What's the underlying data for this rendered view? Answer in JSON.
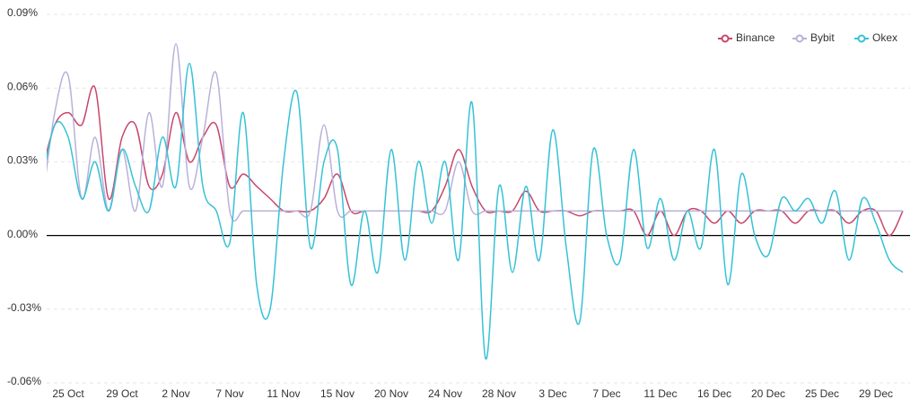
{
  "chart_data": {
    "type": "line",
    "categories": [
      null,
      null,
      "25 Oct",
      null,
      null,
      null,
      "29 Oct",
      null,
      null,
      null,
      "2 Nov",
      null,
      null,
      null,
      "7 Nov",
      null,
      null,
      null,
      "11 Nov",
      null,
      null,
      null,
      "15 Nov",
      null,
      null,
      null,
      "20 Nov",
      null,
      null,
      null,
      "24 Nov",
      null,
      null,
      null,
      "28 Nov",
      null,
      null,
      null,
      "3 Dec",
      null,
      null,
      null,
      "7 Dec",
      null,
      null,
      null,
      "11 Dec",
      null,
      null,
      null,
      "16 Dec",
      null,
      null,
      null,
      "20 Dec",
      null,
      null,
      null,
      "25 Dec",
      null,
      null,
      null,
      "29 Dec",
      null,
      null
    ],
    "series": [
      {
        "name": "Binance",
        "color": "#c8476a",
        "values": [
          0.025,
          0.045,
          0.05,
          0.045,
          0.06,
          0.015,
          0.04,
          0.045,
          0.02,
          0.025,
          0.05,
          0.03,
          0.04,
          0.045,
          0.02,
          0.025,
          0.02,
          0.015,
          0.01,
          0.01,
          0.01,
          0.015,
          0.025,
          0.01,
          0.01,
          0.01,
          0.01,
          0.01,
          0.01,
          0.01,
          0.02,
          0.035,
          0.02,
          0.01,
          0.01,
          0.01,
          0.018,
          0.01,
          0.01,
          0.01,
          0.008,
          0.01,
          0.01,
          0.01,
          0.01,
          0.0,
          0.01,
          0.0,
          0.01,
          0.01,
          0.005,
          0.01,
          0.005,
          0.01,
          0.01,
          0.01,
          0.005,
          0.01,
          0.01,
          0.01,
          0.005,
          0.01,
          0.01,
          0.0,
          0.01
        ]
      },
      {
        "name": "Bybit",
        "color": "#b9b1da",
        "values": [
          0.01,
          0.05,
          0.065,
          0.015,
          0.04,
          0.01,
          0.035,
          0.01,
          0.05,
          0.02,
          0.078,
          0.02,
          0.04,
          0.066,
          0.01,
          0.01,
          0.01,
          0.01,
          0.01,
          0.01,
          0.01,
          0.045,
          0.01,
          0.01,
          0.01,
          0.01,
          0.01,
          0.01,
          0.01,
          0.01,
          0.01,
          0.03,
          0.01,
          0.01,
          0.01,
          0.01,
          0.01,
          0.01,
          0.01,
          0.01,
          0.01,
          0.01,
          0.01,
          0.01,
          0.01,
          0.01,
          0.01,
          0.01,
          0.01,
          0.01,
          0.01,
          0.01,
          0.01,
          0.01,
          0.01,
          0.01,
          0.01,
          0.01,
          0.01,
          0.01,
          0.01,
          0.01,
          0.01,
          0.01,
          0.01
        ]
      },
      {
        "name": "Okex",
        "color": "#36c2d6",
        "values": [
          0.02,
          0.045,
          0.04,
          0.015,
          0.03,
          0.01,
          0.035,
          0.02,
          0.01,
          0.04,
          0.02,
          0.07,
          0.02,
          0.01,
          -0.003,
          0.05,
          -0.02,
          -0.03,
          0.03,
          0.058,
          -0.005,
          0.03,
          0.035,
          -0.02,
          0.01,
          -0.015,
          0.035,
          -0.01,
          0.03,
          0.005,
          0.03,
          -0.01,
          0.054,
          -0.05,
          0.02,
          -0.015,
          0.02,
          -0.01,
          0.043,
          -0.005,
          -0.035,
          0.035,
          0.0,
          -0.01,
          0.035,
          -0.005,
          0.015,
          -0.01,
          0.01,
          -0.005,
          0.035,
          -0.02,
          0.025,
          0.0,
          -0.008,
          0.015,
          0.01,
          0.015,
          0.005,
          0.018,
          -0.01,
          0.015,
          0.005,
          -0.01,
          -0.015
        ]
      }
    ],
    "ylim": [
      -0.06,
      0.09
    ],
    "yticks": [
      {
        "value": -0.06,
        "label": "-0.06%"
      },
      {
        "value": -0.03,
        "label": "-0.03%"
      },
      {
        "value": 0,
        "label": "0.00%"
      },
      {
        "value": 0.03,
        "label": "0.03%"
      },
      {
        "value": 0.06,
        "label": "0.06%"
      },
      {
        "value": 0.09,
        "label": "0.09%"
      }
    ],
    "grid": true,
    "legend": "top-right"
  }
}
